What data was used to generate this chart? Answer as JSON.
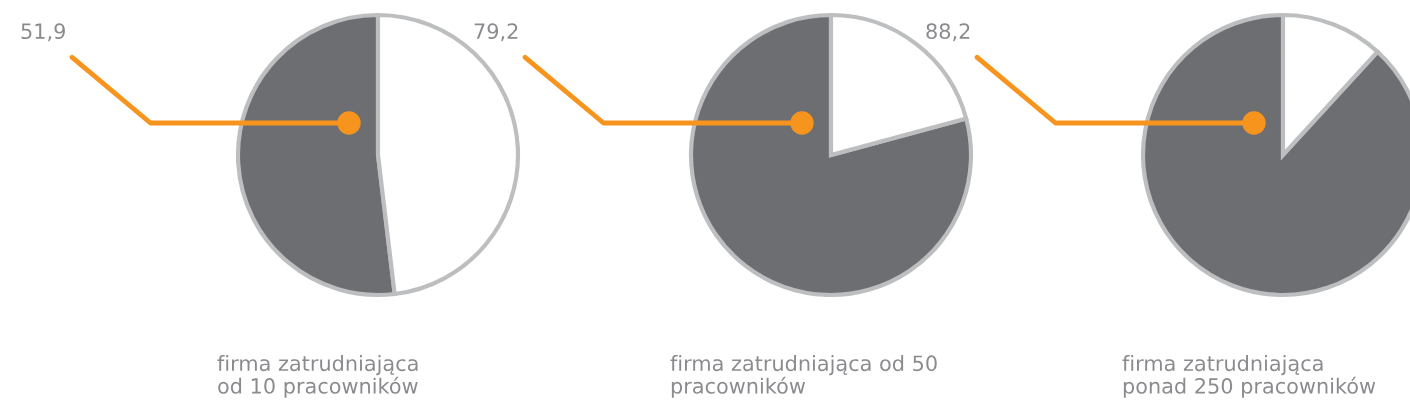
{
  "chart_data": [
    {
      "type": "pie",
      "title": "firma zatrudniająca\nod 10 pracowników",
      "categories": [
        null,
        null
      ],
      "values": [
        51.9,
        48.1
      ],
      "colors": [
        "#6d6e71",
        "#ffffff"
      ],
      "value_labels": [
        "51,9",
        null
      ]
    },
    {
      "type": "pie",
      "title": "firma zatrudniająca od 50\npracowników",
      "categories": [
        null,
        null
      ],
      "values": [
        79.2,
        20.8
      ],
      "colors": [
        "#6d6e71",
        "#ffffff"
      ],
      "value_labels": [
        "79,2",
        null
      ]
    },
    {
      "type": "pie",
      "title": "firma zatrudniająca\nponad 250 pracowników",
      "categories": [
        null,
        null
      ],
      "values": [
        88.2,
        11.8
      ],
      "colors": [
        "#6d6e71",
        "#ffffff"
      ],
      "value_labels": [
        "88,2",
        null
      ]
    }
  ]
}
